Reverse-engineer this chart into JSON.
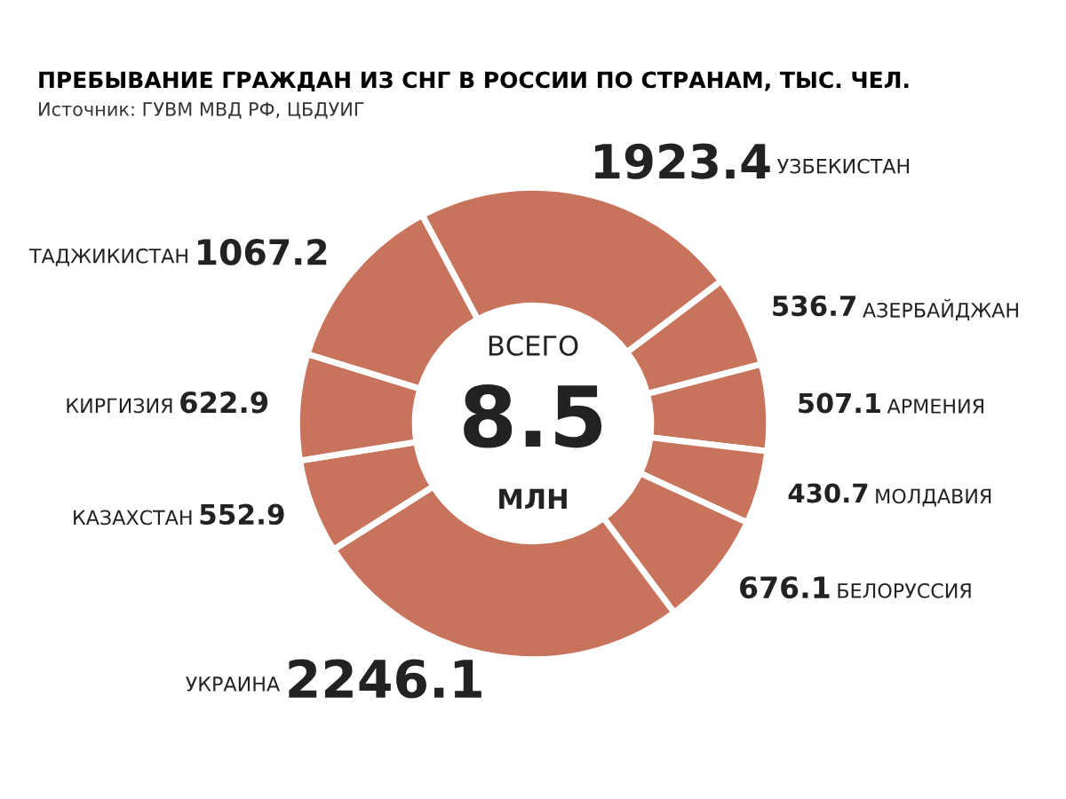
{
  "chart_data": {
    "type": "donut",
    "title": "ПРЕБЫВАНИЕ ГРАЖДАН ИЗ СНГ В РОССИИ ПО СТРАНАМ, ТЫС. ЧЕЛ.",
    "subtitle": "Источник: ГУВМ МВД РФ, ЦБДУИГ",
    "categories": [
      "УЗБЕКИСТАН",
      "АЗЕРБАЙДЖАН",
      "АРМЕНИЯ",
      "МОЛДАВИЯ",
      "БЕЛОРУССИЯ",
      "УКРАИНА",
      "КАЗАХСТАН",
      "КИРГИЗИЯ",
      "ТАДЖИКИСТАН"
    ],
    "values": [
      1923.4,
      536.7,
      507.1,
      430.7,
      676.1,
      2246.1,
      552.9,
      622.9,
      1067.2
    ],
    "colors": [
      "#c8735c",
      "#c8735c",
      "#c8735c",
      "#c8735c",
      "#c8735c",
      "#c8735c",
      "#c8735c",
      "#c8735c",
      "#c8735c"
    ],
    "value_labels": [
      "1923.4",
      "536.7",
      "507.1",
      "430.7",
      "676.1",
      "2246.1",
      "552.9",
      "622.9",
      "1067.2"
    ],
    "annotations": [
      "ВСЕГО",
      "8.5",
      "МЛН"
    ],
    "legend": false
  }
}
